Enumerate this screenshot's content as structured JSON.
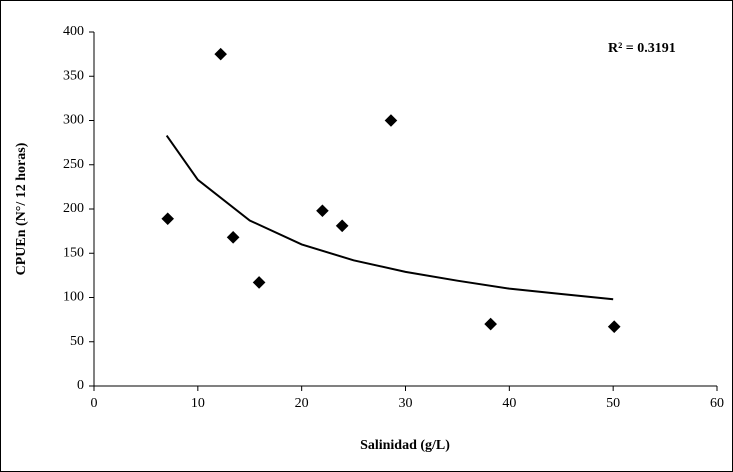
{
  "chart_data": {
    "type": "scatter",
    "x_label": "Salinidad (g/L)",
    "y_label": "CPUEn (N°/ 12 horas)",
    "annotation": "R² = 0.3191",
    "series": [
      {
        "name": "CPUEn",
        "color": "#000000",
        "x": [
          7.1,
          12.2,
          13.4,
          15.9,
          22.0,
          23.9,
          28.6,
          38.2,
          50.1
        ],
        "values": [
          189,
          375,
          168,
          117,
          198,
          181,
          300,
          70,
          67
        ]
      }
    ],
    "trendline": {
      "color": "#000000",
      "x": [
        7,
        10,
        15,
        20,
        25,
        30,
        35,
        40,
        45,
        50
      ],
      "values": [
        283,
        233,
        187,
        160,
        142,
        129,
        119,
        110,
        104,
        98
      ]
    },
    "xlim": [
      0,
      60
    ],
    "xticks": [
      0,
      10,
      20,
      30,
      40,
      50,
      60
    ],
    "ylim": [
      0,
      400
    ],
    "yticks": [
      0,
      50,
      100,
      150,
      200,
      250,
      300,
      350,
      400
    ],
    "grid": false
  }
}
